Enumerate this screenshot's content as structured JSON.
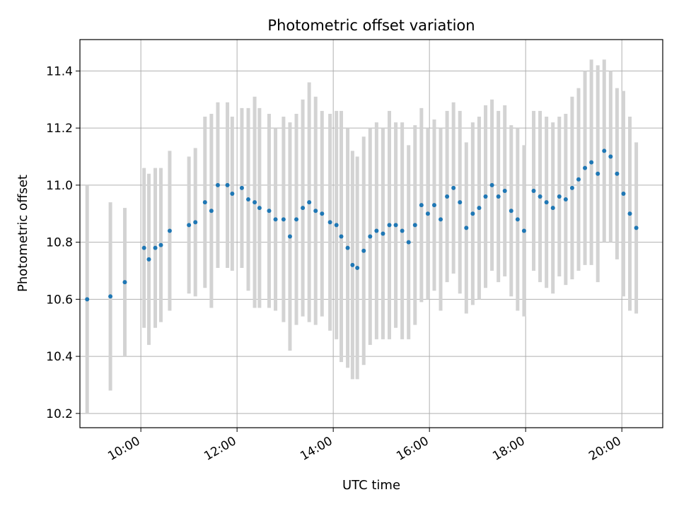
{
  "chart_data": {
    "type": "scatter",
    "title": "Photometric offset variation",
    "xlabel": "UTC time",
    "ylabel": "Photometric offset",
    "x_ticks": [
      "10:00",
      "12:00",
      "14:00",
      "16:00",
      "18:00",
      "20:00"
    ],
    "y_ticks": [
      "10.2",
      "10.4",
      "10.6",
      "10.8",
      "11.0",
      "11.2",
      "11.4"
    ],
    "xlim": [
      "08:44",
      "20:51"
    ],
    "ylim": [
      10.15,
      11.51
    ],
    "grid": true,
    "errorbar_color": "#d3d3d3",
    "point_color": "#1f77b4",
    "points": [
      {
        "t": "08:53",
        "y": 10.6,
        "e": 0.4
      },
      {
        "t": "09:22",
        "y": 10.61,
        "e": 0.33
      },
      {
        "t": "09:40",
        "y": 10.66,
        "e": 0.26
      },
      {
        "t": "10:04",
        "y": 10.78,
        "e": 0.28
      },
      {
        "t": "10:10",
        "y": 10.74,
        "e": 0.3
      },
      {
        "t": "10:18",
        "y": 10.78,
        "e": 0.28
      },
      {
        "t": "10:25",
        "y": 10.79,
        "e": 0.27
      },
      {
        "t": "10:36",
        "y": 10.84,
        "e": 0.28
      },
      {
        "t": "11:00",
        "y": 10.86,
        "e": 0.24
      },
      {
        "t": "11:08",
        "y": 10.87,
        "e": 0.26
      },
      {
        "t": "11:20",
        "y": 10.94,
        "e": 0.3
      },
      {
        "t": "11:28",
        "y": 10.91,
        "e": 0.34
      },
      {
        "t": "11:36",
        "y": 11.0,
        "e": 0.29
      },
      {
        "t": "11:48",
        "y": 11.0,
        "e": 0.29
      },
      {
        "t": "11:54",
        "y": 10.97,
        "e": 0.27
      },
      {
        "t": "12:06",
        "y": 10.99,
        "e": 0.28
      },
      {
        "t": "12:14",
        "y": 10.95,
        "e": 0.32
      },
      {
        "t": "12:22",
        "y": 10.94,
        "e": 0.37
      },
      {
        "t": "12:28",
        "y": 10.92,
        "e": 0.35
      },
      {
        "t": "12:40",
        "y": 10.91,
        "e": 0.34
      },
      {
        "t": "12:48",
        "y": 10.88,
        "e": 0.32
      },
      {
        "t": "12:58",
        "y": 10.88,
        "e": 0.36
      },
      {
        "t": "13:06",
        "y": 10.82,
        "e": 0.4
      },
      {
        "t": "13:14",
        "y": 10.88,
        "e": 0.37
      },
      {
        "t": "13:22",
        "y": 10.92,
        "e": 0.38
      },
      {
        "t": "13:30",
        "y": 10.94,
        "e": 0.42
      },
      {
        "t": "13:38",
        "y": 10.91,
        "e": 0.4
      },
      {
        "t": "13:46",
        "y": 10.9,
        "e": 0.36
      },
      {
        "t": "13:56",
        "y": 10.87,
        "e": 0.38
      },
      {
        "t": "14:04",
        "y": 10.86,
        "e": 0.4
      },
      {
        "t": "14:10",
        "y": 10.82,
        "e": 0.44
      },
      {
        "t": "14:18",
        "y": 10.78,
        "e": 0.42
      },
      {
        "t": "14:24",
        "y": 10.72,
        "e": 0.4
      },
      {
        "t": "14:30",
        "y": 10.71,
        "e": 0.39
      },
      {
        "t": "14:38",
        "y": 10.77,
        "e": 0.4
      },
      {
        "t": "14:46",
        "y": 10.82,
        "e": 0.38
      },
      {
        "t": "14:54",
        "y": 10.84,
        "e": 0.38
      },
      {
        "t": "15:02",
        "y": 10.83,
        "e": 0.37
      },
      {
        "t": "15:10",
        "y": 10.86,
        "e": 0.4
      },
      {
        "t": "15:18",
        "y": 10.86,
        "e": 0.36
      },
      {
        "t": "15:26",
        "y": 10.84,
        "e": 0.38
      },
      {
        "t": "15:34",
        "y": 10.8,
        "e": 0.34
      },
      {
        "t": "15:42",
        "y": 10.86,
        "e": 0.35
      },
      {
        "t": "15:50",
        "y": 10.93,
        "e": 0.34
      },
      {
        "t": "15:58",
        "y": 10.9,
        "e": 0.3
      },
      {
        "t": "16:06",
        "y": 10.93,
        "e": 0.3
      },
      {
        "t": "16:14",
        "y": 10.88,
        "e": 0.32
      },
      {
        "t": "16:22",
        "y": 10.96,
        "e": 0.3
      },
      {
        "t": "16:30",
        "y": 10.99,
        "e": 0.3
      },
      {
        "t": "16:38",
        "y": 10.94,
        "e": 0.32
      },
      {
        "t": "16:46",
        "y": 10.85,
        "e": 0.3
      },
      {
        "t": "16:54",
        "y": 10.9,
        "e": 0.32
      },
      {
        "t": "17:02",
        "y": 10.92,
        "e": 0.32
      },
      {
        "t": "17:10",
        "y": 10.96,
        "e": 0.32
      },
      {
        "t": "17:18",
        "y": 11.0,
        "e": 0.3
      },
      {
        "t": "17:26",
        "y": 10.96,
        "e": 0.3
      },
      {
        "t": "17:34",
        "y": 10.98,
        "e": 0.3
      },
      {
        "t": "17:42",
        "y": 10.91,
        "e": 0.3
      },
      {
        "t": "17:50",
        "y": 10.88,
        "e": 0.32
      },
      {
        "t": "17:58",
        "y": 10.84,
        "e": 0.3
      },
      {
        "t": "18:10",
        "y": 10.98,
        "e": 0.28
      },
      {
        "t": "18:18",
        "y": 10.96,
        "e": 0.3
      },
      {
        "t": "18:26",
        "y": 10.94,
        "e": 0.3
      },
      {
        "t": "18:34",
        "y": 10.92,
        "e": 0.3
      },
      {
        "t": "18:42",
        "y": 10.96,
        "e": 0.28
      },
      {
        "t": "18:50",
        "y": 10.95,
        "e": 0.3
      },
      {
        "t": "18:58",
        "y": 10.99,
        "e": 0.32
      },
      {
        "t": "19:06",
        "y": 11.02,
        "e": 0.32
      },
      {
        "t": "19:14",
        "y": 11.06,
        "e": 0.34
      },
      {
        "t": "19:22",
        "y": 11.08,
        "e": 0.36
      },
      {
        "t": "19:30",
        "y": 11.04,
        "e": 0.38
      },
      {
        "t": "19:38",
        "y": 11.12,
        "e": 0.32
      },
      {
        "t": "19:46",
        "y": 11.1,
        "e": 0.3
      },
      {
        "t": "19:54",
        "y": 11.04,
        "e": 0.3
      },
      {
        "t": "20:02",
        "y": 10.97,
        "e": 0.36
      },
      {
        "t": "20:10",
        "y": 10.9,
        "e": 0.34
      },
      {
        "t": "20:18",
        "y": 10.85,
        "e": 0.3
      }
    ]
  }
}
